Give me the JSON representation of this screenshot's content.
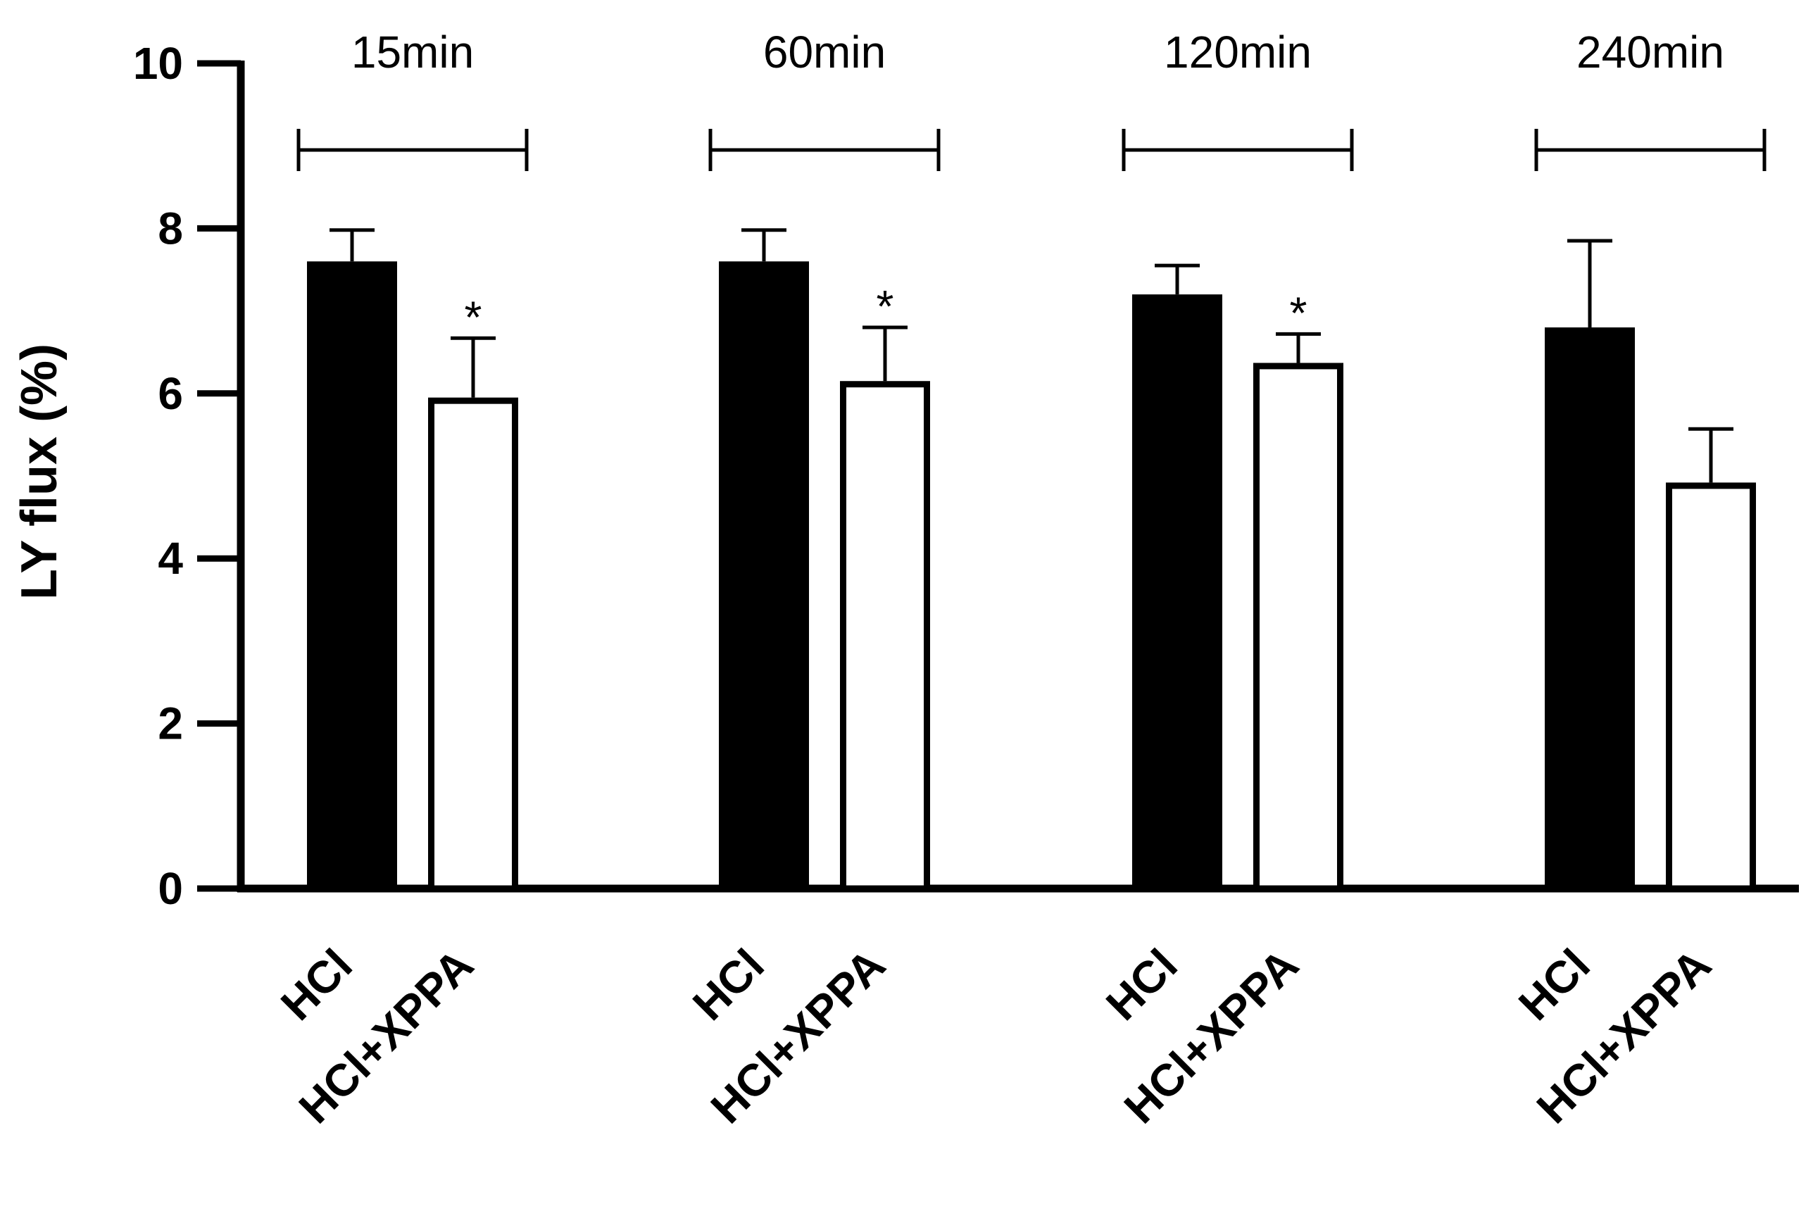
{
  "chart_data": {
    "type": "bar",
    "title": "",
    "xlabel": "",
    "ylabel": "LY flux (%)",
    "ylim": [
      0,
      10
    ],
    "yticks": [
      0,
      2,
      4,
      6,
      8,
      10
    ],
    "grid": false,
    "legend": "none",
    "groups": [
      {
        "label": "15min",
        "bars": [
          {
            "category": "HCl",
            "value": 7.6,
            "error": 0.38,
            "fill": "#000000",
            "sig": ""
          },
          {
            "category": "HCl+XPPA",
            "value": 5.95,
            "error": 0.72,
            "fill": "#ffffff",
            "sig": "*"
          }
        ]
      },
      {
        "label": "60min",
        "bars": [
          {
            "category": "HCl",
            "value": 7.6,
            "error": 0.38,
            "fill": "#000000",
            "sig": ""
          },
          {
            "category": "HCl+XPPA",
            "value": 6.15,
            "error": 0.65,
            "fill": "#ffffff",
            "sig": "*"
          }
        ]
      },
      {
        "label": "120min",
        "bars": [
          {
            "category": "HCl",
            "value": 7.2,
            "error": 0.35,
            "fill": "#000000",
            "sig": ""
          },
          {
            "category": "HCl+XPPA",
            "value": 6.37,
            "error": 0.35,
            "fill": "#ffffff",
            "sig": "*"
          }
        ]
      },
      {
        "label": "240min",
        "bars": [
          {
            "category": "HCl",
            "value": 6.8,
            "error": 1.05,
            "fill": "#000000",
            "sig": ""
          },
          {
            "category": "HCl+XPPA",
            "value": 4.92,
            "error": 0.65,
            "fill": "#ffffff",
            "sig": ""
          }
        ]
      }
    ]
  }
}
